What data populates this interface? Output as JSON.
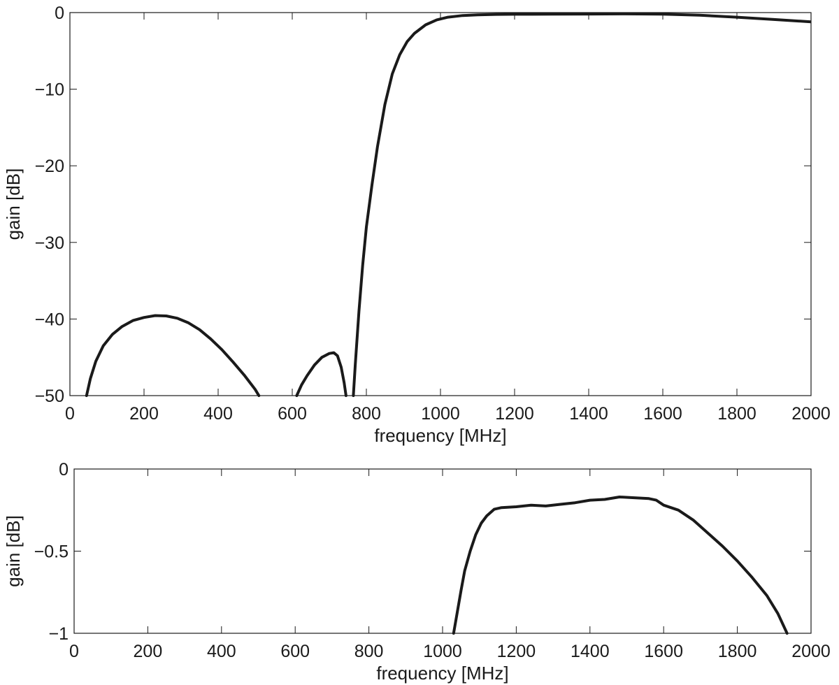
{
  "chart_data": [
    {
      "type": "line",
      "xlabel": "frequency [MHz]",
      "ylabel": "gain [dB]",
      "xlim": [
        0,
        2000
      ],
      "ylim": [
        -50,
        0
      ],
      "xticks": [
        0,
        200,
        400,
        600,
        800,
        1000,
        1200,
        1400,
        1600,
        1800,
        2000
      ],
      "xtick_labels": [
        "0",
        "200",
        "400",
        "600",
        "800",
        "1000",
        "1200",
        "1400",
        "1600",
        "1800",
        "2000"
      ],
      "yticks": [
        -50,
        -40,
        -30,
        -20,
        -10,
        0
      ],
      "ytick_labels": [
        "−50",
        "−40",
        "−30",
        "−20",
        "−10",
        "0"
      ],
      "grid": false,
      "line_color": "#1a1a1a",
      "series": [
        {
          "segments": [
            [
              [
                45,
                -50
              ],
              [
                55,
                -47.8
              ],
              [
                70,
                -45.5
              ],
              [
                90,
                -43.5
              ],
              [
                115,
                -42.0
              ],
              [
                140,
                -41.0
              ],
              [
                170,
                -40.2
              ],
              [
                200,
                -39.8
              ],
              [
                230,
                -39.55
              ],
              [
                260,
                -39.6
              ],
              [
                290,
                -39.9
              ],
              [
                320,
                -40.5
              ],
              [
                350,
                -41.4
              ],
              [
                380,
                -42.6
              ],
              [
                410,
                -44.0
              ],
              [
                440,
                -45.6
              ],
              [
                470,
                -47.3
              ],
              [
                500,
                -49.2
              ],
              [
                510,
                -50
              ]
            ],
            [
              [
                612,
                -50
              ],
              [
                625,
                -48.6
              ],
              [
                640,
                -47.4
              ],
              [
                660,
                -46.0
              ],
              [
                680,
                -45.0
              ],
              [
                700,
                -44.5
              ],
              [
                712,
                -44.4
              ],
              [
                722,
                -44.8
              ],
              [
                732,
                -46.3
              ],
              [
                740,
                -48.3
              ],
              [
                745,
                -50
              ]
            ],
            [
              [
                765,
                -50
              ],
              [
                770,
                -46.0
              ],
              [
                780,
                -39.0
              ],
              [
                790,
                -33.0
              ],
              [
                800,
                -28.0
              ],
              [
                815,
                -22.5
              ],
              [
                830,
                -17.5
              ],
              [
                850,
                -12.0
              ],
              [
                870,
                -8.0
              ],
              [
                890,
                -5.5
              ],
              [
                910,
                -3.8
              ],
              [
                930,
                -2.7
              ],
              [
                960,
                -1.6
              ],
              [
                990,
                -0.95
              ],
              [
                1020,
                -0.6
              ],
              [
                1060,
                -0.38
              ],
              [
                1100,
                -0.3
              ],
              [
                1150,
                -0.24
              ],
              [
                1200,
                -0.22
              ],
              [
                1300,
                -0.21
              ],
              [
                1400,
                -0.19
              ],
              [
                1500,
                -0.17
              ],
              [
                1600,
                -0.2
              ],
              [
                1700,
                -0.35
              ],
              [
                1800,
                -0.6
              ],
              [
                1900,
                -0.9
              ],
              [
                2000,
                -1.2
              ]
            ]
          ]
        }
      ]
    },
    {
      "type": "line",
      "xlabel": "frequency [MHz]",
      "ylabel": "gain [dB]",
      "xlim": [
        0,
        2000
      ],
      "ylim": [
        -1,
        0
      ],
      "xticks": [
        0,
        200,
        400,
        600,
        800,
        1000,
        1200,
        1400,
        1600,
        1800,
        2000
      ],
      "xtick_labels": [
        "0",
        "200",
        "400",
        "600",
        "800",
        "1000",
        "1200",
        "1400",
        "1600",
        "1800",
        "2000"
      ],
      "yticks": [
        -1,
        -0.5,
        0
      ],
      "ytick_labels": [
        "−1",
        "−0.5",
        "0"
      ],
      "grid": false,
      "line_color": "#1a1a1a",
      "series": [
        {
          "segments": [
            [
              [
                1030,
                -1.0
              ],
              [
                1040,
                -0.87
              ],
              [
                1050,
                -0.74
              ],
              [
                1060,
                -0.62
              ],
              [
                1075,
                -0.5
              ],
              [
                1090,
                -0.4
              ],
              [
                1105,
                -0.33
              ],
              [
                1120,
                -0.285
              ],
              [
                1140,
                -0.245
              ],
              [
                1160,
                -0.235
              ],
              [
                1200,
                -0.23
              ],
              [
                1240,
                -0.22
              ],
              [
                1280,
                -0.225
              ],
              [
                1320,
                -0.215
              ],
              [
                1360,
                -0.205
              ],
              [
                1400,
                -0.19
              ],
              [
                1440,
                -0.185
              ],
              [
                1480,
                -0.17
              ],
              [
                1520,
                -0.175
              ],
              [
                1560,
                -0.18
              ],
              [
                1580,
                -0.19
              ],
              [
                1600,
                -0.22
              ],
              [
                1640,
                -0.25
              ],
              [
                1680,
                -0.31
              ],
              [
                1720,
                -0.39
              ],
              [
                1760,
                -0.47
              ],
              [
                1800,
                -0.56
              ],
              [
                1840,
                -0.66
              ],
              [
                1880,
                -0.77
              ],
              [
                1910,
                -0.88
              ],
              [
                1935,
                -1.0
              ]
            ]
          ]
        }
      ]
    }
  ]
}
